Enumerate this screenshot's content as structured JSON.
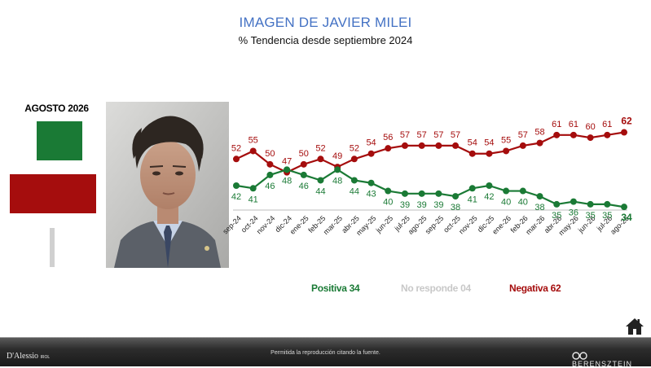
{
  "header": {
    "title": "IMAGEN DE JAVIER MILEI",
    "subtitle": "% Tendencia desde septiembre 2024"
  },
  "summary": {
    "period_label": "AGOSTO 2026",
    "positiva": 34,
    "negativa": 62,
    "no_responde": 4
  },
  "legend": {
    "positiva_label": "Positiva 34",
    "no_responde_label": "No responde 04",
    "negativa_label": "Negativa 62"
  },
  "colors": {
    "positiva": "#1a7a35",
    "negativa": "#a50d0d",
    "no_responde": "#c8c8c8",
    "title": "#4472c4"
  },
  "footer": {
    "note": "Permitida la reproducción citando la fuente.",
    "brand_left": "D'Alessio",
    "brand_left_suffix": "IROL",
    "brand_right": "BERENSZTEIN"
  },
  "icons": {
    "home": "home-icon",
    "photo": "person-portrait"
  },
  "chart_data": {
    "type": "line",
    "title": "IMAGEN DE JAVIER MILEI",
    "subtitle": "% Tendencia desde septiembre 2024",
    "categories": [
      "sep-24",
      "oct-24",
      "nov-24",
      "dic-24",
      "ene-25",
      "feb-25",
      "mar-25",
      "abr-25",
      "may-25",
      "jun-25",
      "jul-25",
      "ago-25",
      "sep-25",
      "oct-25",
      "nov-25",
      "dic-25",
      "ene-26",
      "feb-26",
      "mar-26",
      "abr-26",
      "may-26",
      "jun-26",
      "jul-26",
      "ago-26"
    ],
    "series": [
      {
        "name": "Negativa",
        "color": "#a50d0d",
        "values": [
          52,
          55,
          50,
          47,
          50,
          52,
          49,
          52,
          54,
          56,
          57,
          57,
          57,
          57,
          54,
          54,
          55,
          57,
          58,
          61,
          61,
          60,
          61,
          62
        ]
      },
      {
        "name": "Positiva",
        "color": "#1a7a35",
        "values": [
          42,
          41,
          46,
          48,
          46,
          44,
          48,
          44,
          43,
          40,
          39,
          39,
          39,
          38,
          41,
          42,
          40,
          40,
          38,
          35,
          36,
          35,
          35,
          34
        ]
      }
    ],
    "ylim": [
      20,
      75
    ],
    "grid": false,
    "legend_position": "bottom"
  }
}
